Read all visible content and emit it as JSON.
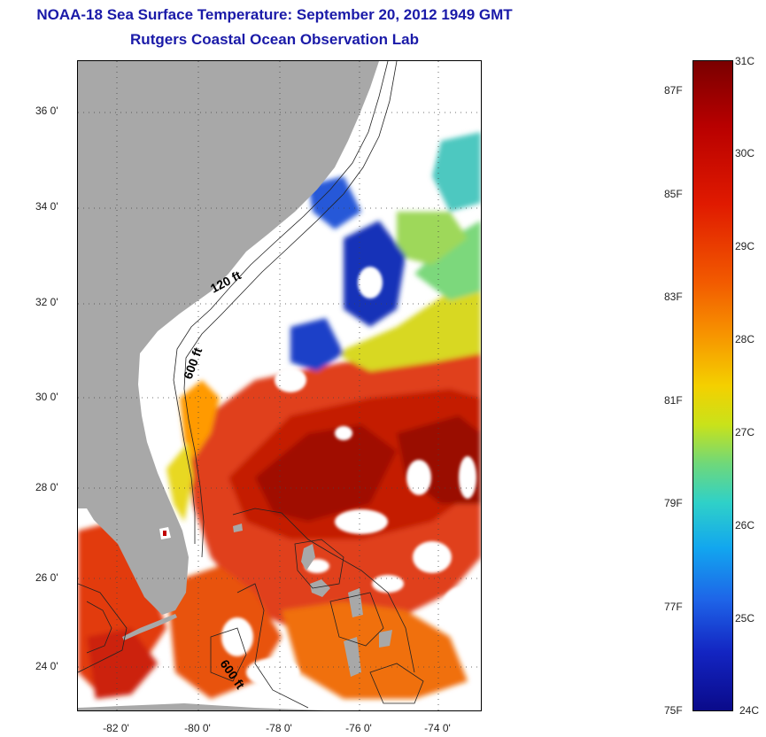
{
  "header": {
    "title": "NOAA-18 Sea Surface Temperature:  September 20, 2012 1949 GMT",
    "subtitle": "Rutgers Coastal Ocean Observation Lab"
  },
  "map": {
    "lat_ticks": [
      "36 0'",
      "34 0'",
      "32 0'",
      "30 0'",
      "28 0'",
      "26 0'",
      "24 0'"
    ],
    "lon_ticks": [
      "-82 0'",
      "-80 0'",
      "-78 0'",
      "-76 0'",
      "-74 0'"
    ],
    "contour_labels": [
      "120 ft",
      "600 ft",
      "600 ft"
    ],
    "land_color": "#a8a8a8",
    "gridlines": "dotted"
  },
  "colorbar": {
    "celsius_labels": [
      "31C",
      "30C",
      "29C",
      "28C",
      "27C",
      "26C",
      "25C",
      "24C"
    ],
    "fahrenheit_labels": [
      "87F",
      "85F",
      "83F",
      "81F",
      "79F",
      "77F",
      "75F"
    ],
    "min_color": "#0a0a8a",
    "max_color": "#7a0000"
  }
}
